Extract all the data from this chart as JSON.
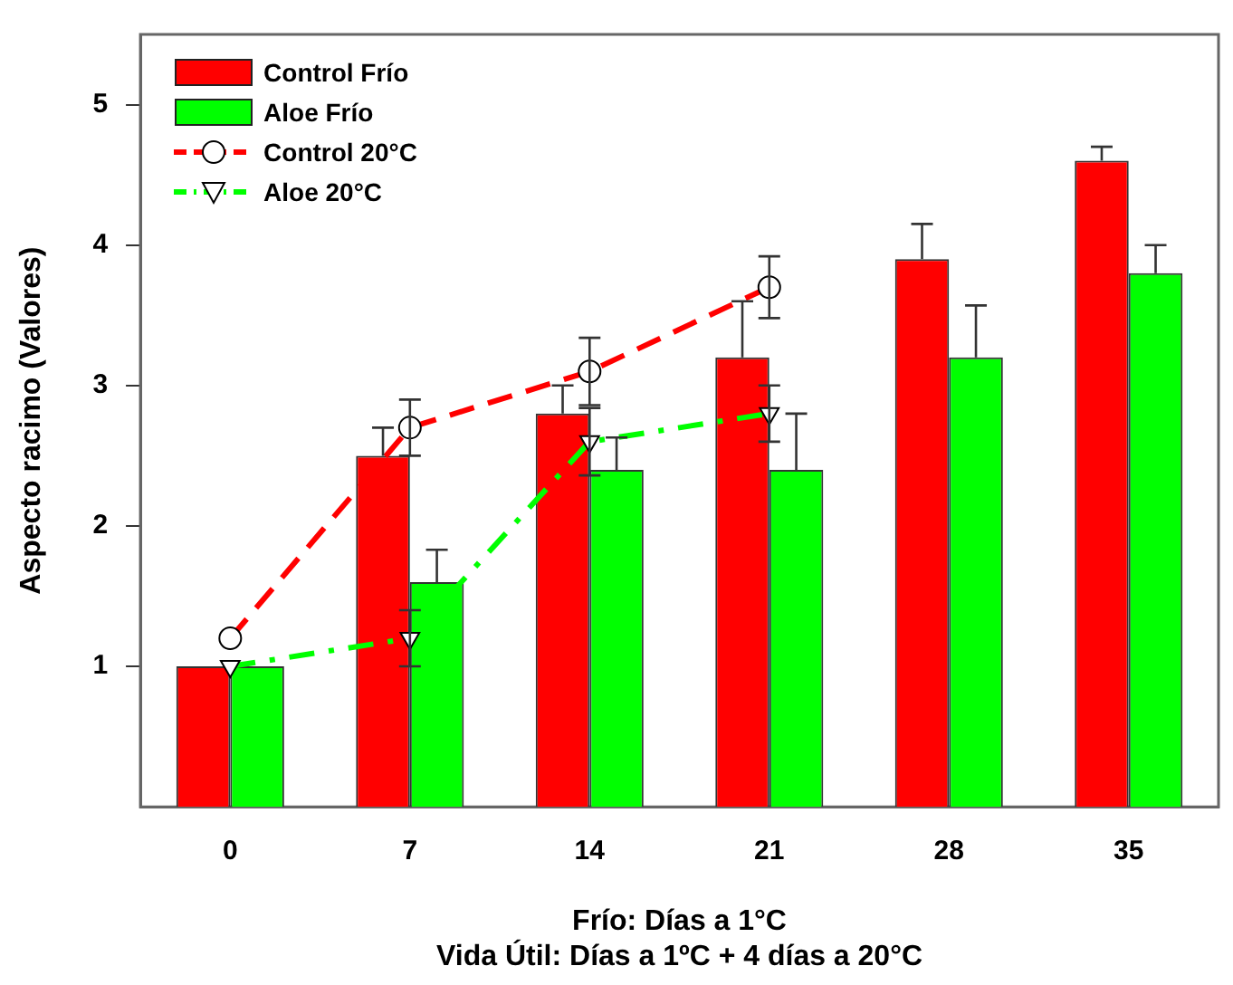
{
  "chart_data": {
    "type": "bar",
    "xlabel": "Frío: Días a 1°C\nVida Útil: Días a 1ºC + 4 días a 20°C",
    "ylabel": "Aspecto racimo (Valores)",
    "categories": [
      "0",
      "7",
      "14",
      "21",
      "28",
      "35"
    ],
    "ylim": [
      0,
      5.5
    ],
    "yticks": [
      1,
      2,
      3,
      4,
      5
    ],
    "grid": false,
    "legend": "top left",
    "series": [
      {
        "name": "Control Frío",
        "color": "#ff0000",
        "values": [
          1,
          2.5,
          2.8,
          3.2,
          3.9,
          4.6
        ],
        "errors": [
          null,
          [
            2.5,
            2.7
          ],
          [
            2.8,
            3.0
          ],
          [
            3.2,
            3.6
          ],
          [
            3.9,
            4.15
          ],
          [
            4.6,
            4.7
          ]
        ]
      },
      {
        "name": "Aloe Frío",
        "color": "#00ff00",
        "values": [
          1,
          1.6,
          2.4,
          2.4,
          3.2,
          3.8
        ],
        "errors": [
          null,
          [
            1.6,
            1.83
          ],
          [
            2.4,
            2.63
          ],
          [
            2.4,
            2.8
          ],
          [
            3.2,
            3.57
          ],
          [
            3.8,
            4.0
          ]
        ]
      },
      {
        "name": "Control 20°C",
        "type": "line",
        "color": "#ff0000",
        "marker": "circle",
        "line_style": "dashed",
        "values": [
          1.2,
          2.7,
          3.1,
          3.7,
          null,
          null
        ],
        "errors": [
          null,
          0.2,
          0.24,
          0.22,
          null,
          null
        ]
      },
      {
        "name": "Aloe 20°C",
        "type": "line",
        "color": "#00ff00",
        "marker": "triangle",
        "line_style": "dashdot",
        "values": [
          1.0,
          1.2,
          2.6,
          2.8,
          null,
          null
        ],
        "errors": [
          null,
          0.2,
          0.24,
          0.2,
          null,
          null
        ]
      }
    ]
  }
}
